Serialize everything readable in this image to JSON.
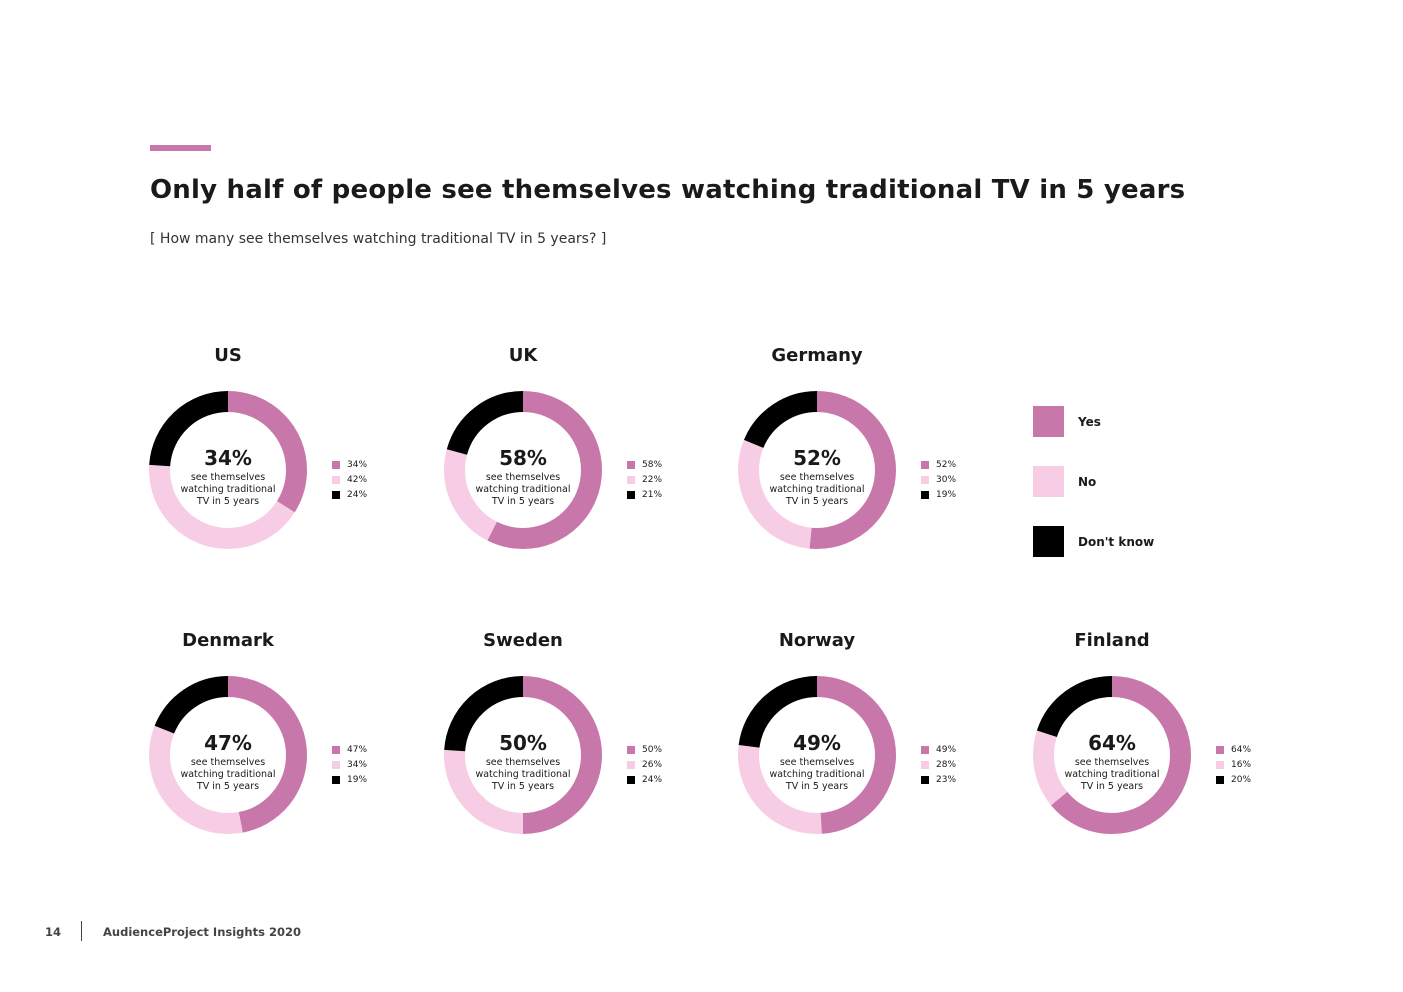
{
  "header": {
    "title": "Only half of people see themselves watching traditional TV in 5 years",
    "subtitle": "[ How many see themselves watching traditional TV in 5 years? ]"
  },
  "colors": {
    "accent": "#c777aa",
    "yes": "#c777aa",
    "no": "#f7cde5",
    "dont_know": "#000000"
  },
  "legend": {
    "items": [
      {
        "label": "Yes",
        "color": "#c777aa"
      },
      {
        "label": "No",
        "color": "#f7cde5"
      },
      {
        "label": "Don't know",
        "color": "#000000"
      }
    ]
  },
  "caption": "see themselves watching traditional TV in 5 years",
  "chart_data": [
    {
      "type": "pie",
      "title": "US",
      "center_label": "34%",
      "categories": [
        "Yes",
        "No",
        "Don't know"
      ],
      "values": [
        34,
        42,
        24
      ],
      "value_labels": [
        "34%",
        "42%",
        "24%"
      ]
    },
    {
      "type": "pie",
      "title": "UK",
      "center_label": "58%",
      "categories": [
        "Yes",
        "No",
        "Don't know"
      ],
      "values": [
        58,
        22,
        21
      ],
      "value_labels": [
        "58%",
        "22%",
        "21%"
      ]
    },
    {
      "type": "pie",
      "title": "Germany",
      "center_label": "52%",
      "categories": [
        "Yes",
        "No",
        "Don't know"
      ],
      "values": [
        52,
        30,
        19
      ],
      "value_labels": [
        "52%",
        "30%",
        "19%"
      ]
    },
    {
      "type": "pie",
      "title": "Denmark",
      "center_label": "47%",
      "categories": [
        "Yes",
        "No",
        "Don't know"
      ],
      "values": [
        47,
        34,
        19
      ],
      "value_labels": [
        "47%",
        "34%",
        "19%"
      ]
    },
    {
      "type": "pie",
      "title": "Sweden",
      "center_label": "50%",
      "categories": [
        "Yes",
        "No",
        "Don't know"
      ],
      "values": [
        50,
        26,
        24
      ],
      "value_labels": [
        "50%",
        "26%",
        "24%"
      ]
    },
    {
      "type": "pie",
      "title": "Norway",
      "center_label": "49%",
      "categories": [
        "Yes",
        "No",
        "Don't know"
      ],
      "values": [
        49,
        28,
        23
      ],
      "value_labels": [
        "49%",
        "28%",
        "23%"
      ]
    },
    {
      "type": "pie",
      "title": "Finland",
      "center_label": "64%",
      "categories": [
        "Yes",
        "No",
        "Don't know"
      ],
      "values": [
        64,
        16,
        20
      ],
      "value_labels": [
        "64%",
        "16%",
        "20%"
      ]
    }
  ],
  "footer": {
    "page_number": "14",
    "publication": "AudienceProject Insights 2020"
  }
}
